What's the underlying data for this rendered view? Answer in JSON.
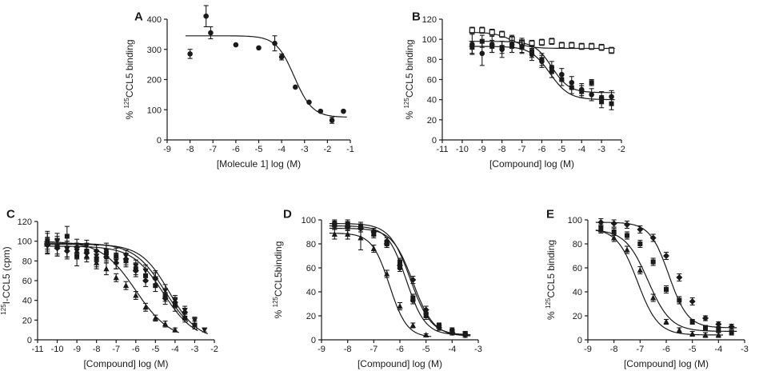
{
  "chart_data": [
    {
      "panel": "A",
      "type": "scatter",
      "xlabel": "[Molecule 1] log (M)",
      "ylabel_sup": "125",
      "ylabel_main": "CCL5 binding",
      "ylabel_prefix": "% ",
      "ylabel_suffix": "",
      "xlim": [
        -9,
        -1
      ],
      "ylim": [
        0,
        400
      ],
      "xticks": [
        -9,
        -8,
        -7,
        -6,
        -5,
        -4,
        -3,
        -2,
        -1
      ],
      "yticks": [
        0,
        100,
        200,
        300,
        400
      ],
      "series": [
        {
          "name": "Molecule 1",
          "marker": "circle",
          "fit": {
            "top": 345,
            "bottom": 75,
            "logEC50": -3.45,
            "hill": 1.1
          },
          "x": [
            -8,
            -7.3,
            -7.1,
            -6,
            -5,
            -4.3,
            -4,
            -3.4,
            -2.8,
            -2.3,
            -1.8,
            -1.3
          ],
          "y": [
            285,
            410,
            355,
            315,
            305,
            320,
            275,
            175,
            125,
            95,
            65,
            95
          ],
          "err": [
            15,
            35,
            20,
            0,
            0,
            25,
            10,
            0,
            0,
            0,
            10,
            0
          ]
        }
      ]
    },
    {
      "panel": "B",
      "type": "scatter",
      "xlabel": "[Compound] log (M)",
      "ylabel_sup": "125",
      "ylabel_main": "CCL5 binding",
      "ylabel_prefix": "% ",
      "ylabel_suffix": "",
      "xlim": [
        -11,
        -2
      ],
      "ylim": [
        0,
        120
      ],
      "xticks": [
        -11,
        -10,
        -9,
        -8,
        -7,
        -6,
        -5,
        -4,
        -3,
        -2
      ],
      "yticks": [
        0,
        20,
        40,
        60,
        80,
        100,
        120
      ],
      "series": [
        {
          "name": "open square",
          "marker": "square-open",
          "fit": {
            "top": 107,
            "bottom": 91,
            "logEC50": -7.5,
            "hill": 1.0
          },
          "x": [
            -9.5,
            -9,
            -8.5,
            -8,
            -7.5,
            -7,
            -6.5,
            -6,
            -5.5,
            -5,
            -4.5,
            -4,
            -3.5,
            -3,
            -2.5
          ],
          "y": [
            109,
            109,
            107,
            105,
            100,
            97,
            96,
            97,
            98,
            94,
            94,
            93,
            93,
            92,
            89
          ],
          "err": [
            3,
            3,
            3,
            3,
            4,
            4,
            3,
            3,
            3,
            3,
            3,
            3,
            3,
            3,
            3
          ]
        },
        {
          "name": "filled circle",
          "marker": "circle",
          "fit": {
            "top": 98,
            "bottom": 47,
            "logEC50": -5.5,
            "hill": 1.0
          },
          "x": [
            -9.5,
            -9,
            -8.5,
            -8,
            -7.5,
            -7,
            -6.5,
            -6,
            -5.5,
            -5,
            -4.5,
            -4,
            -3.5,
            -3,
            -2.5
          ],
          "y": [
            95,
            86,
            95,
            90,
            95,
            93,
            85,
            78,
            72,
            65,
            57,
            50,
            45,
            42,
            43
          ],
          "err": [
            10,
            12,
            8,
            8,
            8,
            6,
            6,
            6,
            6,
            6,
            6,
            6,
            6,
            6,
            6
          ]
        },
        {
          "name": "filled square",
          "marker": "square",
          "fit": {
            "top": 93,
            "bottom": 40,
            "logEC50": -5.6,
            "hill": 0.9
          },
          "x": [
            -9.5,
            -9,
            -8.5,
            -8,
            -7.5,
            -7,
            -6.5,
            -6,
            -5.5,
            -5,
            -4.5,
            -4,
            -3.5,
            -3,
            -2.5
          ],
          "y": [
            92,
            98,
            93,
            92,
            93,
            92,
            88,
            80,
            68,
            60,
            52,
            48,
            57,
            38,
            36
          ],
          "err": [
            6,
            6,
            6,
            6,
            6,
            6,
            6,
            6,
            6,
            6,
            6,
            6,
            3,
            6,
            6
          ]
        }
      ]
    },
    {
      "panel": "C",
      "type": "scatter",
      "xlabel": "[Compound] log (M)",
      "ylabel_sup": "125",
      "ylabel_main": "I-CCL5 (cpm)",
      "ylabel_prefix": "",
      "ylabel_suffix": "",
      "xlim": [
        -11,
        -2
      ],
      "ylim": [
        0,
        120
      ],
      "xticks": [
        -11,
        -10,
        -9,
        -8,
        -7,
        -6,
        -5,
        -4,
        -3,
        -2
      ],
      "yticks": [
        0,
        20,
        40,
        60,
        80,
        100,
        120
      ],
      "series": [
        {
          "name": "triangle",
          "marker": "triangle",
          "fit": {
            "top": 100,
            "bottom": 0,
            "logEC50": -6.0,
            "hill": 0.5
          },
          "x": [
            -10.5,
            -10,
            -9.5,
            -9,
            -8.5,
            -8,
            -7.5,
            -7,
            -6.5,
            -6,
            -5.5,
            -5,
            -4.5,
            -4
          ],
          "y": [
            100,
            95,
            92,
            90,
            85,
            78,
            72,
            63,
            55,
            45,
            33,
            22,
            16,
            10
          ],
          "err": [
            8,
            8,
            8,
            8,
            6,
            6,
            6,
            4,
            4,
            4,
            4,
            3,
            3,
            2
          ]
        },
        {
          "name": "square",
          "marker": "square",
          "fit": {
            "top": 95,
            "bottom": 0,
            "logEC50": -4.6,
            "hill": 0.55
          },
          "x": [
            -10.5,
            -10,
            -9.5,
            -9,
            -8.5,
            -8,
            -7.5,
            -7,
            -6.5,
            -6,
            -5.5,
            -5,
            -4.5,
            -4,
            -3.5,
            -3
          ],
          "y": [
            100,
            95,
            105,
            85,
            90,
            82,
            88,
            85,
            80,
            72,
            65,
            55,
            45,
            35,
            22,
            15
          ],
          "err": [
            10,
            10,
            10,
            10,
            8,
            8,
            8,
            8,
            6,
            6,
            6,
            6,
            6,
            6,
            4,
            4
          ]
        },
        {
          "name": "inverted triangle",
          "marker": "triangle-down",
          "fit": {
            "top": 97,
            "bottom": 0,
            "logEC50": -4.3,
            "hill": 0.6
          },
          "x": [
            -10.5,
            -10,
            -9.5,
            -9,
            -8.5,
            -8,
            -7.5,
            -7,
            -6.5,
            -6,
            -5.5,
            -5,
            -4.5,
            -4,
            -3.5,
            -3,
            -2.5
          ],
          "y": [
            95,
            100,
            92,
            90,
            95,
            85,
            90,
            80,
            85,
            75,
            70,
            62,
            50,
            40,
            30,
            20,
            10
          ],
          "err": [
            8,
            8,
            8,
            8,
            6,
            6,
            8,
            8,
            6,
            6,
            6,
            6,
            6,
            5,
            4,
            3,
            2
          ]
        },
        {
          "name": "diamond",
          "marker": "diamond",
          "fit": {
            "top": 98,
            "bottom": 0,
            "logEC50": -4.5,
            "hill": 0.55
          },
          "x": [
            -10.5,
            -10,
            -9.5,
            -9,
            -8.5,
            -8,
            -7.5,
            -7,
            -6.5,
            -6,
            -5.5,
            -5,
            -4.5,
            -4,
            -3.5
          ],
          "y": [
            96,
            93,
            90,
            94,
            88,
            90,
            84,
            78,
            82,
            70,
            60,
            62,
            42,
            38,
            28
          ],
          "err": [
            8,
            8,
            8,
            8,
            6,
            6,
            6,
            6,
            6,
            6,
            6,
            8,
            6,
            5,
            4
          ]
        }
      ]
    },
    {
      "panel": "D",
      "type": "scatter",
      "xlabel": "[Compound] log (M)",
      "ylabel_sup": "125",
      "ylabel_main": "CCL5binding",
      "ylabel_prefix": "% ",
      "ylabel_suffix": "",
      "xlim": [
        -9,
        -3
      ],
      "ylim": [
        0,
        100
      ],
      "xticks": [
        -9,
        -8,
        -7,
        -6,
        -5,
        -4,
        -3
      ],
      "yticks": [
        0,
        20,
        40,
        60,
        80,
        100
      ],
      "series": [
        {
          "name": "triangle",
          "marker": "triangle",
          "fit": {
            "top": 89,
            "bottom": 2,
            "logEC50": -6.4,
            "hill": 1.3
          },
          "x": [
            -8.5,
            -8,
            -7.5,
            -7,
            -6.5,
            -6,
            -5.5,
            -5
          ],
          "y": [
            88,
            88,
            85,
            76,
            55,
            28,
            12,
            4
          ],
          "err": [
            4,
            4,
            10,
            3,
            3,
            3,
            2,
            1
          ]
        },
        {
          "name": "square",
          "marker": "square",
          "fit": {
            "top": 95,
            "bottom": 4,
            "logEC50": -5.75,
            "hill": 1.2
          },
          "x": [
            -8.5,
            -8,
            -7.5,
            -7,
            -6.5,
            -6,
            -5.5,
            -5,
            -4.5,
            -4,
            -3.5
          ],
          "y": [
            96,
            97,
            95,
            88,
            80,
            65,
            35,
            20,
            12,
            7,
            5
          ],
          "err": [
            3,
            3,
            3,
            3,
            3,
            3,
            3,
            3,
            2,
            2,
            2
          ]
        },
        {
          "name": "circle",
          "marker": "circle",
          "fit": {
            "top": 97,
            "bottom": 4,
            "logEC50": -5.6,
            "hill": 1.1
          },
          "x": [
            -8.5,
            -8,
            -7.5,
            -7,
            -6.5,
            -6,
            -5.5,
            -5,
            -4.5,
            -4,
            -3.5
          ],
          "y": [
            97,
            95,
            93,
            90,
            82,
            60,
            33,
            22,
            12,
            8,
            5
          ],
          "err": [
            3,
            3,
            3,
            3,
            3,
            3,
            3,
            3,
            2,
            2,
            2
          ]
        },
        {
          "name": "diamond",
          "marker": "diamond",
          "fit": {
            "top": 93,
            "bottom": 3,
            "logEC50": -5.5,
            "hill": 1.1
          },
          "x": [
            -8.5,
            -8,
            -7.5,
            -7,
            -6.5,
            -6,
            -5.5,
            -5,
            -4.5,
            -4,
            -3.5
          ],
          "y": [
            95,
            94,
            93,
            90,
            80,
            62,
            50,
            25,
            10,
            6,
            4
          ],
          "err": [
            3,
            3,
            3,
            3,
            3,
            3,
            3,
            3,
            2,
            2,
            2
          ]
        }
      ]
    },
    {
      "panel": "E",
      "type": "scatter",
      "xlabel": "[Compound] log (M)",
      "ylabel_sup": "125",
      "ylabel_main": "CCL5 binding",
      "ylabel_prefix": "% ",
      "ylabel_suffix": "",
      "xlim": [
        -9,
        -3
      ],
      "ylim": [
        0,
        100
      ],
      "xticks": [
        -9,
        -8,
        -7,
        -6,
        -5,
        -4,
        -3
      ],
      "yticks": [
        0,
        20,
        40,
        60,
        80,
        100
      ],
      "series": [
        {
          "name": "triangle",
          "marker": "triangle",
          "fit": {
            "top": 93,
            "bottom": 4,
            "logEC50": -7.1,
            "hill": 1.1
          },
          "x": [
            -8.5,
            -8,
            -7.5,
            -7,
            -6.5,
            -6,
            -5.5,
            -5,
            -4.5,
            -4
          ],
          "y": [
            92,
            85,
            75,
            58,
            35,
            15,
            8,
            5,
            4,
            4
          ],
          "err": [
            3,
            3,
            3,
            3,
            3,
            2,
            2,
            2,
            2,
            2
          ]
        },
        {
          "name": "square",
          "marker": "square",
          "fit": {
            "top": 92,
            "bottom": 7,
            "logEC50": -6.7,
            "hill": 1.0
          },
          "x": [
            -8.5,
            -8,
            -7.5,
            -7,
            -6.5,
            -6,
            -5.5,
            -5,
            -4.5,
            -4,
            -3.5
          ],
          "y": [
            93,
            90,
            87,
            80,
            65,
            42,
            33,
            15,
            10,
            8,
            6
          ],
          "err": [
            3,
            3,
            3,
            3,
            3,
            3,
            3,
            2,
            2,
            2,
            2
          ]
        },
        {
          "name": "diamond",
          "marker": "diamond",
          "fit": {
            "top": 98,
            "bottom": 10,
            "logEC50": -5.9,
            "hill": 1.2
          },
          "x": [
            -8.5,
            -8,
            -7.5,
            -7,
            -6.5,
            -6,
            -5.5,
            -5,
            -4.5,
            -4,
            -3.5
          ],
          "y": [
            98,
            97,
            96,
            92,
            85,
            70,
            52,
            32,
            18,
            13,
            11
          ],
          "err": [
            3,
            3,
            3,
            3,
            3,
            3,
            3,
            3,
            2,
            2,
            2
          ]
        }
      ]
    }
  ]
}
